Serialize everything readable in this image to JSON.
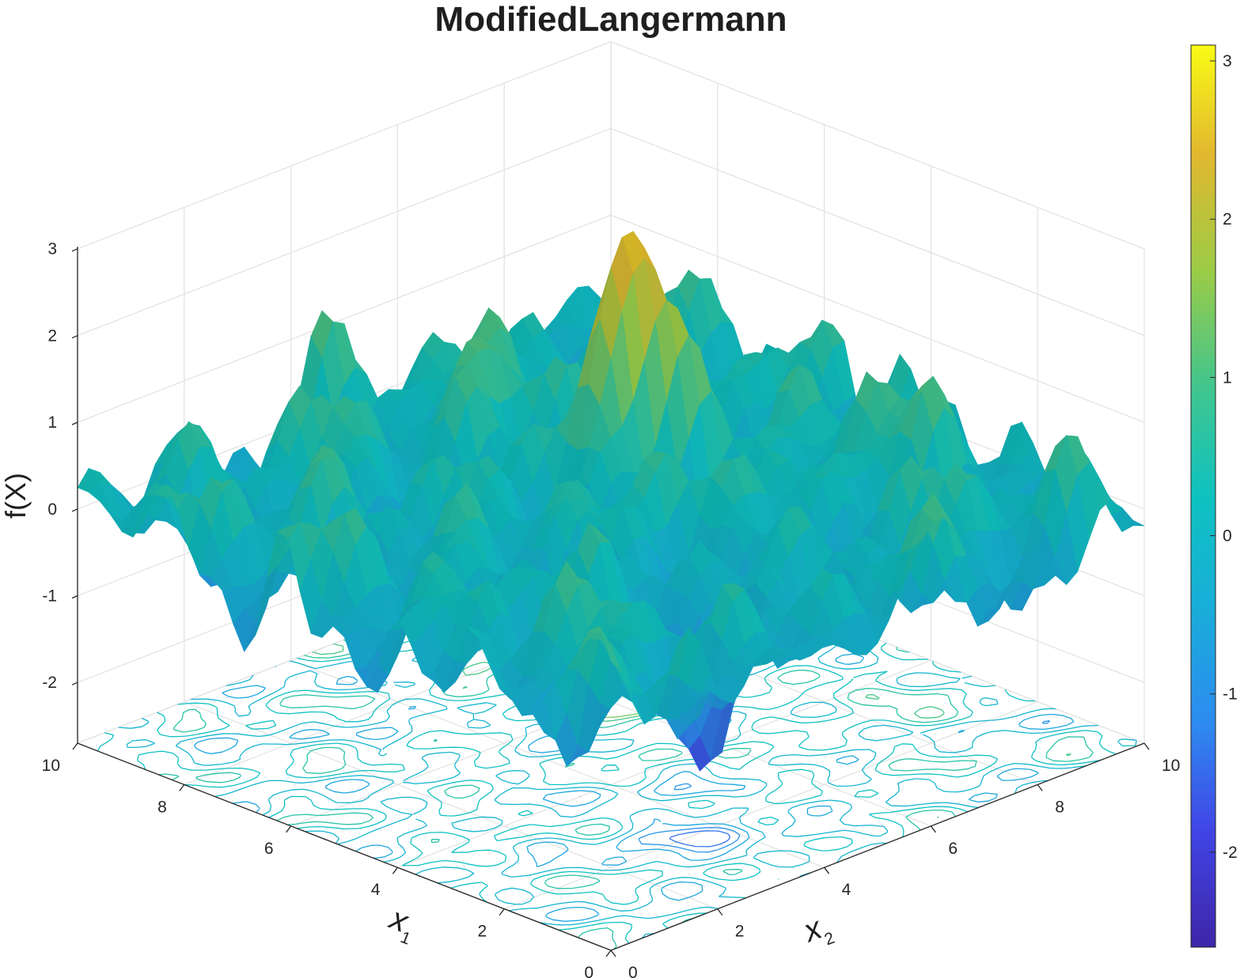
{
  "chart_data": {
    "type": "surface",
    "title": "ModifiedLangermann",
    "xlabel": "x",
    "xlabel_sub": "1",
    "ylabel": "x",
    "ylabel_sub": "2",
    "zlabel": "f(X)",
    "xlim": [
      0,
      10
    ],
    "ylim": [
      0,
      10
    ],
    "zlim": [
      -2.7,
      3.0
    ],
    "x_ticks": [
      "0",
      "2",
      "4",
      "6",
      "8",
      "10"
    ],
    "y_ticks": [
      "0",
      "2",
      "4",
      "6",
      "8",
      "10"
    ],
    "z_ticks": [
      "-2",
      "-1",
      "0",
      "1",
      "2",
      "3"
    ],
    "colorbar": {
      "colormap": "parula",
      "range": [
        -2.6,
        3.1
      ],
      "ticks": [
        "-2",
        "-1",
        "0",
        "1",
        "2",
        "3"
      ]
    },
    "grid": true,
    "contour_on_floor": true,
    "peak": {
      "x1": 5.9,
      "x2": 6.3,
      "f": 3.0
    },
    "view": "default 3-D view (azimuth -37.5, elevation 30)"
  }
}
